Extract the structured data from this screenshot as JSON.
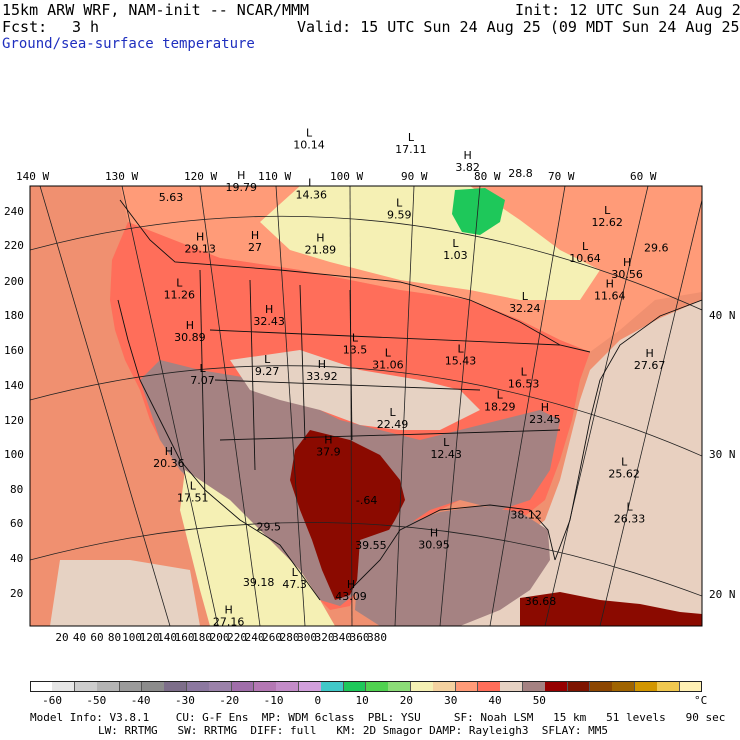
{
  "header": {
    "model_title": "15km ARW WRF, NAM-init -- NCAR/MMM",
    "init": "Init: 12 UTC Sun 24 Aug 25",
    "fcst_label": "Fcst:",
    "fcst_value": "3 h",
    "valid": "Valid: 15 UTC Sun 24 Aug 25 (09 MDT Sun 24 Aug 25)",
    "field": "Ground/sea-surface temperature"
  },
  "top_ticks": [
    "140 W",
    "130 W",
    "120 W",
    "110 W",
    "100 W",
    "90 W",
    "80 W",
    "70 W",
    "60 W"
  ],
  "left_ticks": [
    "240",
    "220",
    "200",
    "180",
    "160",
    "140",
    "120",
    "100",
    "80",
    "60",
    "40",
    "20"
  ],
  "bottom_ticks": [
    "20",
    "40",
    "60",
    "80",
    "100",
    "120",
    "140",
    "160",
    "180",
    "200",
    "220",
    "240",
    "260",
    "280",
    "300",
    "320",
    "340",
    "360",
    "380"
  ],
  "right_ticks": [
    "40 N",
    "30 N",
    "20 N"
  ],
  "map_labels": [
    {
      "type": "L",
      "value": "10.14",
      "lon": -106.0,
      "lat": 53.8
    },
    {
      "type": "L",
      "value": "17.11",
      "lon": -90.5,
      "lat": 53.5
    },
    {
      "type": "H",
      "value": "3.82",
      "lon": -82.0,
      "lat": 52.5
    },
    {
      "type": "",
      "value": "28.8",
      "lon": -74.0,
      "lat": 52.6
    },
    {
      "type": "L",
      "value": "12.62",
      "lon": -61.5,
      "lat": 50.2
    },
    {
      "type": "",
      "value": "29.6",
      "lon": -54.5,
      "lat": 49.2
    },
    {
      "type": "",
      "value": "5.63",
      "lon": -126.5,
      "lat": 51.0
    },
    {
      "type": "H",
      "value": "19.79",
      "lon": -116.0,
      "lat": 51.0
    },
    {
      "type": "L",
      "value": "14.36",
      "lon": -105.5,
      "lat": 50.0
    },
    {
      "type": "L",
      "value": "9.59",
      "lon": -92.5,
      "lat": 48.5
    },
    {
      "type": "L",
      "value": "10.64",
      "lon": -65.5,
      "lat": 47.0
    },
    {
      "type": "H",
      "value": "30.56",
      "lon": -59.5,
      "lat": 46.5
    },
    {
      "type": "H",
      "value": "29.13",
      "lon": -121.5,
      "lat": 46.7
    },
    {
      "type": "H",
      "value": "27",
      "lon": -113.5,
      "lat": 46.3
    },
    {
      "type": "H",
      "value": "21.89",
      "lon": -104.0,
      "lat": 45.8
    },
    {
      "type": "L",
      "value": "1.03",
      "lon": -84.5,
      "lat": 45.7
    },
    {
      "type": "H",
      "value": "11.64",
      "lon": -62.5,
      "lat": 44.5
    },
    {
      "type": "L",
      "value": "11.26",
      "lon": -124.0,
      "lat": 43.4
    },
    {
      "type": "L",
      "value": "32.24",
      "lon": -75.0,
      "lat": 42.3
    },
    {
      "type": "H",
      "value": "30.89",
      "lon": -122.0,
      "lat": 40.0
    },
    {
      "type": "H",
      "value": "32.43",
      "lon": -111.0,
      "lat": 40.6
    },
    {
      "type": "H",
      "value": "27.67",
      "lon": -58.0,
      "lat": 39.8
    },
    {
      "type": "L",
      "value": "13.5",
      "lon": -99.0,
      "lat": 38.2
    },
    {
      "type": "L",
      "value": "15.43",
      "lon": -84.5,
      "lat": 37.7
    },
    {
      "type": "L",
      "value": "7.07",
      "lon": -119.8,
      "lat": 36.6
    },
    {
      "type": "L",
      "value": "9.27",
      "lon": -111.0,
      "lat": 36.8
    },
    {
      "type": "H",
      "value": "33.92",
      "lon": -103.5,
      "lat": 36.2
    },
    {
      "type": "L",
      "value": "31.06",
      "lon": -94.5,
      "lat": 37.1
    },
    {
      "type": "L",
      "value": "16.53",
      "lon": -76.0,
      "lat": 36.5
    },
    {
      "type": "L",
      "value": "18.29",
      "lon": -79.5,
      "lat": 34.5
    },
    {
      "type": "H",
      "value": "23.45",
      "lon": -73.5,
      "lat": 34.0
    },
    {
      "type": "H",
      "value": "20.36",
      "lon": -123.5,
      "lat": 30.6
    },
    {
      "type": "L",
      "value": "22.49",
      "lon": -94.0,
      "lat": 32.6
    },
    {
      "type": "L",
      "value": "25.62",
      "lon": -63.5,
      "lat": 30.9
    },
    {
      "type": "H",
      "value": "37.9",
      "lon": -102.5,
      "lat": 30.5
    },
    {
      "type": "L",
      "value": "12.43",
      "lon": -87.0,
      "lat": 30.5
    },
    {
      "type": "L",
      "value": "17.51",
      "lon": -120.0,
      "lat": 27.7
    },
    {
      "type": "L",
      "value": "26.33",
      "lon": -63.5,
      "lat": 27.5
    },
    {
      "type": "",
      "value": "38.12",
      "lon": -77.0,
      "lat": 26.5
    },
    {
      "type": "",
      "value": "-.64",
      "lon": -97.5,
      "lat": 26.8
    },
    {
      "type": "H",
      "value": "30.95",
      "lon": -89.0,
      "lat": 23.6
    },
    {
      "type": "",
      "value": "39.55",
      "lon": -97.0,
      "lat": 23.4
    },
    {
      "type": "",
      "value": "29.5",
      "lon": -110.0,
      "lat": 25.0
    },
    {
      "type": "",
      "value": "39.18",
      "lon": -111.0,
      "lat": 20.8
    },
    {
      "type": "L",
      "value": "47.3",
      "lon": -106.5,
      "lat": 20.5
    },
    {
      "type": "H",
      "value": "43.09",
      "lon": -99.5,
      "lat": 19.5
    },
    {
      "type": "H",
      "value": "27.16",
      "lon": -114.5,
      "lat": 18.0
    },
    {
      "type": "",
      "value": "36.68",
      "lon": -76.0,
      "lat": 20.0
    }
  ],
  "colorbar": {
    "labels": [
      "-60",
      "-50",
      "-40",
      "-30",
      "-20",
      "-10",
      "0",
      "10",
      "20",
      "30",
      "40",
      "50"
    ],
    "unit": "°C",
    "colors": [
      "#ffffff",
      "#e6e6e6",
      "#cdcdcd",
      "#b4b4b4",
      "#9b9b9b",
      "#8c8c8c",
      "#7d6e8a",
      "#8c78a0",
      "#9b82aa",
      "#a06eaa",
      "#b478b4",
      "#c38cc8",
      "#d2a0dc",
      "#41c8c8",
      "#1ec85a",
      "#50d250",
      "#8cdc78",
      "#f5f0b4",
      "#f5d2a0",
      "#ff9b78",
      "#ff6e5a",
      "#e6d2c3",
      "#a58282",
      "#960000",
      "#7d1400",
      "#8c4600",
      "#a06400",
      "#d29600",
      "#f0c850",
      "#fff0b4"
    ]
  },
  "footer": {
    "line1": "Model Info: V3.8.1    CU: G-F Ens  MP: WDM 6class  PBL: YSU     SF: Noah LSM   15 km   51 levels   90 sec",
    "line2": "LW: RRTMG   SW: RRTMG  DIFF: full   KM: 2D Smagor DAMP: Rayleigh3  SFLAY: MM5"
  },
  "map_colors": {
    "ocean_pacific": "#f09070",
    "ocean_atlantic": "#e8d0c0",
    "gulf": "#a58282",
    "land_warm": "#ff9b78",
    "land_hot": "#ff6e5a",
    "land_cool": "#f5f0b4",
    "land_mauve": "#a58282",
    "land_tan": "#e6d2c3",
    "land_dark": "#8b0a00",
    "lakes": "#1ec85a"
  }
}
